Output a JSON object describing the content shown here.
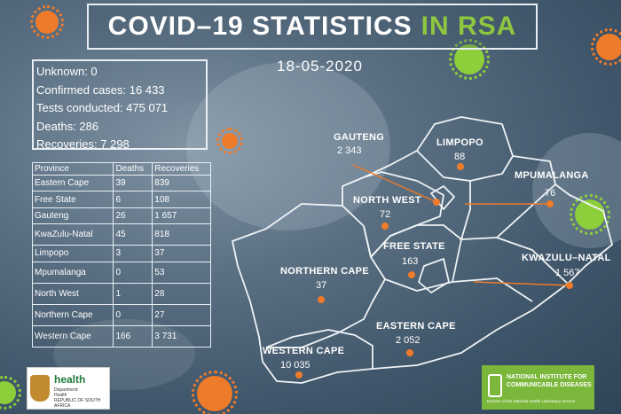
{
  "title": {
    "main": "COVID–19 STATISTICS",
    "accent": "IN RSA"
  },
  "date": "18-05-2020",
  "summary": [
    "Unknown: 0",
    "Confirmed cases: 16 433",
    "Tests conducted: 475 071",
    "Deaths: 286",
    "Recoveries:  7 298"
  ],
  "table": {
    "headers": [
      "Province",
      "Deaths",
      "Recoveries"
    ],
    "rows": [
      [
        "Eastern Cape",
        "39",
        "839"
      ],
      [
        "Free State",
        "6",
        "108"
      ],
      [
        "Gauteng",
        "26",
        "1 657"
      ],
      [
        "KwaZulu-Natal",
        "45",
        "818"
      ],
      [
        "Limpopo",
        "3",
        "37"
      ],
      [
        "Mpumalanga",
        "0",
        "53"
      ],
      [
        "North West",
        "1",
        "28"
      ],
      [
        "Northern Cape",
        "0",
        "27"
      ],
      [
        "Western Cape",
        "166",
        "3 731"
      ]
    ]
  },
  "map": {
    "provinces": [
      {
        "name": "GAUTENG",
        "cases": "2 343"
      },
      {
        "name": "LIMPOPO",
        "cases": "88"
      },
      {
        "name": "MPUMALANGA",
        "cases": "76"
      },
      {
        "name": "NORTH WEST",
        "cases": "72"
      },
      {
        "name": "FREE STATE",
        "cases": "163"
      },
      {
        "name": "KWAZULU–NATAL",
        "cases": "1 567"
      },
      {
        "name": "NORTHERN CAPE",
        "cases": "37"
      },
      {
        "name": "EASTERN CAPE",
        "cases": "2 052"
      },
      {
        "name": "WESTERN CAPE",
        "cases": "10 035"
      }
    ]
  },
  "logos": {
    "health": {
      "word": "health",
      "sub": [
        "Department:",
        "Health",
        "REPUBLIC OF SOUTH AFRICA"
      ]
    },
    "nicd": {
      "name": [
        "NATIONAL INSTITUTE FOR",
        "COMMUNICABLE DISEASES"
      ],
      "sub": "Division of the National Health Laboratory Service"
    }
  },
  "colors": {
    "accent_green": "#8dc63f",
    "marker_orange": "#ee7b2a",
    "background": "#4f6579"
  }
}
